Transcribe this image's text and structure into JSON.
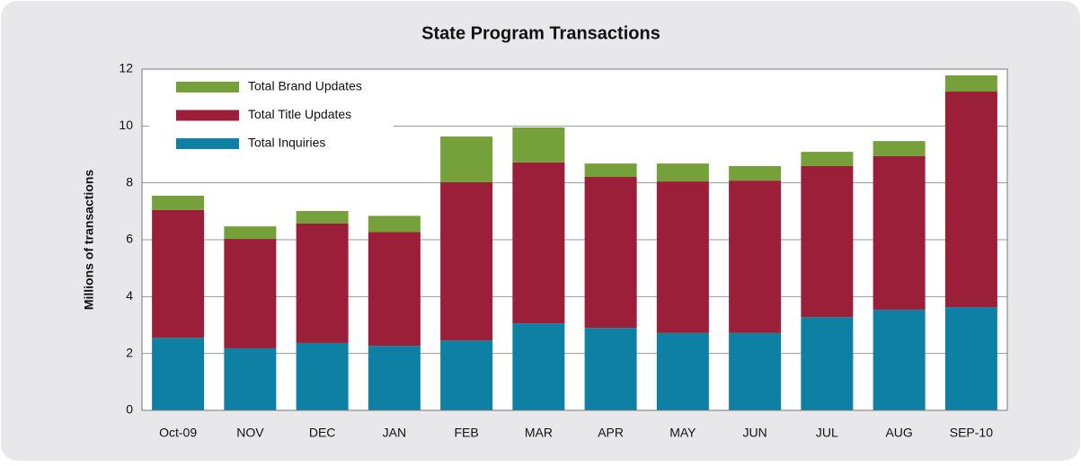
{
  "chart_data": {
    "type": "stacked_bar",
    "title": "State Program Transactions",
    "ylabel": "Millions of transactions",
    "categories": [
      "Oct-09",
      "NOV",
      "DEC",
      "JAN",
      "FEB",
      "MAR",
      "APR",
      "MAY",
      "JUN",
      "JUL",
      "AUG",
      "SEP-10"
    ],
    "series": [
      {
        "name": "Total Inquiries",
        "color": "#0e80a4",
        "values": [
          2.55,
          2.18,
          2.37,
          2.27,
          2.46,
          3.06,
          2.9,
          2.72,
          2.72,
          3.28,
          3.54,
          3.63
        ]
      },
      {
        "name": "Total Title Updates",
        "color": "#9b1f38",
        "values": [
          4.5,
          3.85,
          4.2,
          4.0,
          5.56,
          5.66,
          5.31,
          5.33,
          5.36,
          5.31,
          5.4,
          7.58
        ]
      },
      {
        "name": "Total Brand Updates",
        "color": "#76a03a",
        "values": [
          0.5,
          0.44,
          0.44,
          0.57,
          1.61,
          1.23,
          0.47,
          0.63,
          0.51,
          0.5,
          0.53,
          0.57
        ]
      }
    ],
    "ylim": [
      0,
      12
    ],
    "yticks": [
      0,
      2,
      4,
      6,
      8,
      10,
      12
    ],
    "grid": true,
    "legend": "upper left"
  }
}
